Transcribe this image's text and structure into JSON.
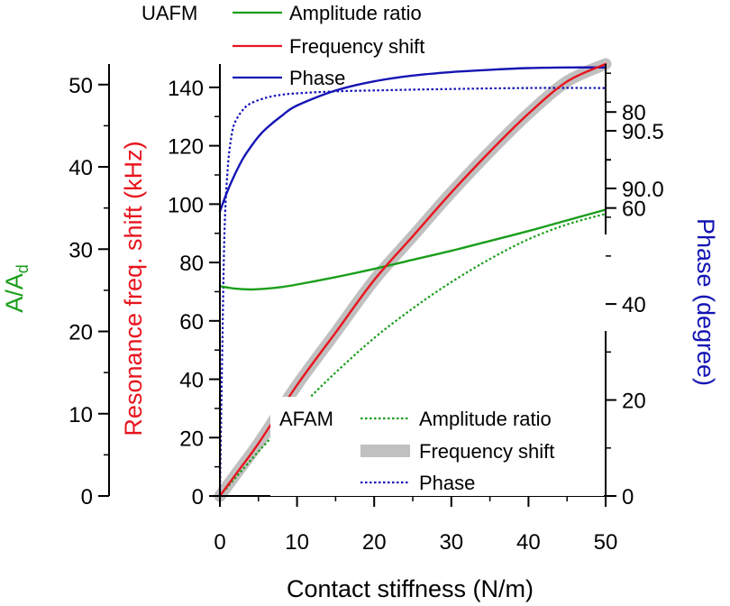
{
  "chart_data": {
    "type": "line",
    "xlabel": "Contact stiffness (N/m)",
    "xlim": [
      0,
      50
    ],
    "xticks": [
      "0",
      "10",
      "20",
      "30",
      "40",
      "50"
    ],
    "axes": {
      "amplitude": {
        "title_main": "A/A",
        "title_sub": "d",
        "color": "#1a9e1a",
        "ylim": [
          0,
          52.5
        ],
        "ticks": [
          "0",
          "10",
          "20",
          "30",
          "40",
          "50"
        ]
      },
      "frequency": {
        "title": "Resonance freq. shift (kHz)",
        "color": "#e8141e",
        "ylim": [
          0,
          148
        ],
        "ticks": [
          "0",
          "20",
          "40",
          "60",
          "80",
          "100",
          "120",
          "140"
        ]
      },
      "phase_afam": {
        "title": "Phase (degree)",
        "color": "#1414b4",
        "ylim": [
          0,
          90
        ],
        "ticks": [
          "0",
          "20",
          "40",
          "60",
          "80"
        ]
      },
      "phase_uafm": {
        "ylim": [
          89.6,
          91.08
        ],
        "ticks": [
          "90.0",
          "90.5"
        ]
      }
    },
    "legends": {
      "uafm": {
        "title": "UAFM",
        "entries": [
          "Amplitude ratio",
          "Frequency shift",
          "Phase"
        ]
      },
      "afam": {
        "title": "AFAM",
        "entries": [
          "Amplitude ratio",
          "Frequency shift",
          "Phase"
        ]
      }
    },
    "series": [
      {
        "name": "UAFM Amplitude ratio",
        "axis": "amplitude",
        "style": "solid",
        "color": "#1a9e1a",
        "x": [
          0,
          2,
          4,
          6,
          8,
          10,
          15,
          20,
          25,
          30,
          35,
          40,
          45,
          50
        ],
        "y": [
          25.5,
          25.2,
          25.1,
          25.2,
          25.4,
          25.7,
          26.6,
          27.6,
          28.7,
          29.8,
          31.0,
          32.2,
          33.5,
          34.8
        ]
      },
      {
        "name": "UAFM Frequency shift",
        "axis": "frequency",
        "style": "solid",
        "color": "#e8141e",
        "x": [
          0,
          2.5,
          5,
          10,
          15,
          20,
          25,
          30,
          35,
          40,
          45,
          50
        ],
        "y": [
          0,
          9,
          18,
          38,
          56,
          74,
          89,
          104,
          118,
          131,
          142,
          148
        ]
      },
      {
        "name": "UAFM Phase",
        "axis": "phase_uafm",
        "style": "solid",
        "color": "#1414b4",
        "x": [
          0,
          1,
          2,
          3,
          4,
          5,
          6,
          8,
          10,
          15,
          20,
          25,
          30,
          35,
          40,
          45,
          50
        ],
        "y": [
          89.8,
          89.98,
          90.13,
          90.26,
          90.36,
          90.45,
          90.52,
          90.63,
          90.72,
          90.85,
          90.93,
          90.98,
          91.01,
          91.03,
          91.045,
          91.05,
          91.05
        ]
      },
      {
        "name": "AFAM Amplitude ratio",
        "axis": "amplitude",
        "style": "dotted",
        "color": "#1a9e1a",
        "x": [
          0,
          5,
          10,
          15,
          20,
          25,
          30,
          35,
          40,
          45,
          50
        ],
        "y": [
          0,
          5.4,
          10.4,
          15.0,
          19.2,
          22.8,
          26.0,
          28.8,
          31.2,
          33.0,
          34.3
        ]
      },
      {
        "name": "AFAM Frequency shift",
        "axis": "frequency",
        "style": "thick",
        "color": "#c0c0c0",
        "x": [
          0,
          2.5,
          5,
          10,
          15,
          20,
          25,
          30,
          35,
          40,
          45,
          50
        ],
        "y": [
          0,
          9,
          18,
          38,
          56,
          74,
          89,
          104,
          118,
          131,
          142,
          148
        ]
      },
      {
        "name": "AFAM Phase",
        "axis": "phase_afam",
        "style": "dotted",
        "color": "#1414b4",
        "x": [
          0,
          0.3,
          0.6,
          1,
          1.5,
          2,
          3,
          4,
          6,
          8,
          10,
          15,
          20,
          30,
          40,
          50
        ],
        "y": [
          0,
          30,
          55,
          68,
          75,
          78,
          80.5,
          81.8,
          83,
          83.6,
          83.9,
          84.3,
          84.5,
          84.8,
          85,
          85
        ]
      }
    ]
  }
}
